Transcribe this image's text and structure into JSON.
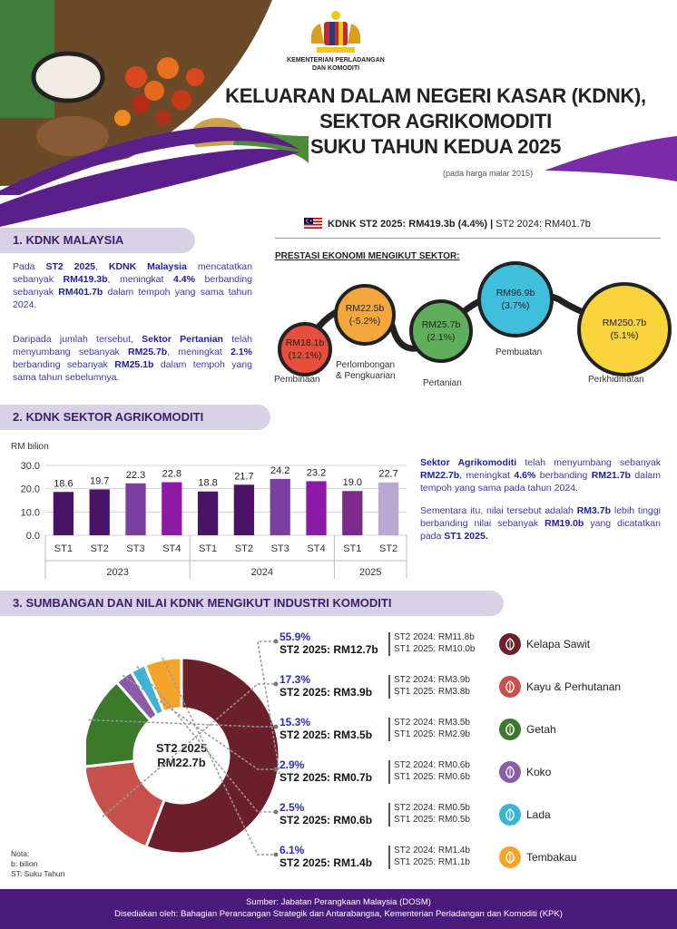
{
  "header": {
    "ministry": [
      "KEMENTERIAN PERLADANGAN",
      "DAN KOMODITI"
    ],
    "title_lines": [
      "KELUARAN DALAM NEGERI KASAR (KDNK),",
      "SEKTOR AGRIKOMODITI",
      "SUKU TAHUN KEDUA 2025"
    ],
    "price_note": "(pada harga malar 2015)"
  },
  "kdnk_summary": {
    "current": "KDNK ST2 2025: RM419.3b (4.4%)",
    "separator": " | ",
    "previous": "ST2 2024: RM401.7b"
  },
  "section1": {
    "heading": "1. KDNK MALAYSIA",
    "para1": [
      {
        "t": "Pada ",
        "b": false
      },
      {
        "t": "ST2 2025",
        "b": true
      },
      {
        "t": ", ",
        "b": false
      },
      {
        "t": "KDNK Malaysia",
        "b": true
      },
      {
        "t": " mencatatkan sebanyak ",
        "b": false
      },
      {
        "t": "RM419.3b",
        "b": true
      },
      {
        "t": ", meningkat ",
        "b": false
      },
      {
        "t": "4.4%",
        "b": true
      },
      {
        "t": " berbanding sebanyak ",
        "b": false
      },
      {
        "t": "RM401.7b",
        "b": true
      },
      {
        "t": " dalam tempoh yang sama tahun 2024.",
        "b": false
      }
    ],
    "para2": [
      {
        "t": "Daripada jumlah tersebut, ",
        "b": false
      },
      {
        "t": "Sektor Pertanian",
        "b": true
      },
      {
        "t": " telah menyumbang sebanyak ",
        "b": false
      },
      {
        "t": "RM25.7b",
        "b": true
      },
      {
        "t": ", meningkat ",
        "b": false
      },
      {
        "t": "2.1%",
        "b": true
      },
      {
        "t": " berbanding sebanyak ",
        "b": false
      },
      {
        "t": "RM25.1b",
        "b": true
      },
      {
        "t": " dalam tempoh yang sama tahun sebelumnya.",
        "b": false
      }
    ]
  },
  "sector_performance": {
    "title": "PRESTASI EKONOMI MENGIKUT SEKTOR:",
    "sectors": [
      {
        "name": "Pembinaan",
        "value": "RM18.1b",
        "growth": "(12.1%)",
        "color": "#e84e3c"
      },
      {
        "name": "Perlombongan\n& Pengkuarian",
        "value": "RM22.5b",
        "growth": "(-5.2%)",
        "color": "#f6a73b"
      },
      {
        "name": "Pertanian",
        "value": "RM25.7b",
        "growth": "(2.1%)",
        "color": "#5fae5b"
      },
      {
        "name": "Pembuatan",
        "value": "RM96.9b",
        "growth": "(3.7%)",
        "color": "#3fbfdc"
      },
      {
        "name": "Perkhidmatan",
        "value": "RM250.7b",
        "growth": "(5.1%)",
        "color": "#f9d43a"
      }
    ]
  },
  "section2": {
    "heading": "2. KDNK SEKTOR AGRIKOMODITI",
    "para1": [
      {
        "t": "Sektor Agrikomoditi",
        "b": true
      },
      {
        "t": " telah menyumbang sebanyak ",
        "b": false
      },
      {
        "t": "RM22.7b",
        "b": true
      },
      {
        "t": ", meningkat ",
        "b": false
      },
      {
        "t": "4.6%",
        "b": true
      },
      {
        "t": " berbanding ",
        "b": false
      },
      {
        "t": "RM21.7b",
        "b": true
      },
      {
        "t": " dalam tempoh yang sama pada tahun 2024.",
        "b": false
      }
    ],
    "para2": [
      {
        "t": "Sementara itu, nilai tersebut adalah ",
        "b": false
      },
      {
        "t": "RM3.7b",
        "b": true
      },
      {
        "t": " lebih tinggi berbanding nilai sebanyak ",
        "b": false
      },
      {
        "t": "RM19.0b",
        "b": true
      },
      {
        "t": " yang dicatatkan pada ",
        "b": false
      },
      {
        "t": "ST1 2025.",
        "b": true
      }
    ]
  },
  "chart_data": [
    {
      "type": "bar",
      "ylabel": "RM bilion",
      "ylim": [
        0,
        30
      ],
      "yticks": [
        "0.0",
        "10.0",
        "20.0",
        "30.0"
      ],
      "grid": true,
      "categories": [
        "ST1",
        "ST2",
        "ST3",
        "ST4",
        "ST1",
        "ST2",
        "ST3",
        "ST4",
        "ST1",
        "ST2"
      ],
      "groups": [
        {
          "label": "2023",
          "count": 4
        },
        {
          "label": "2024",
          "count": 4
        },
        {
          "label": "2025",
          "count": 2
        }
      ],
      "values": [
        18.6,
        19.7,
        22.3,
        22.8,
        18.8,
        21.7,
        24.2,
        23.2,
        19.0,
        22.7
      ],
      "value_labels": [
        "18.6",
        "19.7",
        "22.3",
        "22.8",
        "18.8",
        "21.7",
        "24.2",
        "23.2",
        "19.0",
        "22.7"
      ],
      "colors": [
        "#4a1466",
        "#4a1466",
        "#7b3fa0",
        "#8c1aa6",
        "#4a1466",
        "#4a1466",
        "#7b3fa0",
        "#8c1aa6",
        "#7b2a8c",
        "#b8a8d4"
      ]
    },
    {
      "type": "pie",
      "center_label": [
        "ST2 2025",
        "RM22.7b"
      ],
      "slices": [
        {
          "name": "Kelapa Sawit",
          "share": 55.9,
          "color": "#6b1f2a"
        },
        {
          "name": "Kayu & Perhutanan",
          "share": 17.3,
          "color": "#c8504a"
        },
        {
          "name": "Getah",
          "share": 15.3,
          "color": "#3b7a2a"
        },
        {
          "name": "Koko",
          "share": 2.9,
          "color": "#8a5ca8"
        },
        {
          "name": "Lada",
          "share": 2.5,
          "color": "#3ab4d6"
        },
        {
          "name": "Tembakau",
          "share": 6.1,
          "color": "#f4a42a"
        }
      ]
    }
  ],
  "section3": {
    "heading": "3. SUMBANGAN DAN NILAI KDNK MENGIKUT INDUSTRI KOMODITI",
    "industries": [
      {
        "name": "Kelapa Sawit",
        "share": "55.9%",
        "total": "ST2 2025: RM12.7b",
        "prev_lines": [
          "ST2 2024: RM11.8b",
          "ST1 2025: RM10.0b"
        ],
        "icon": "palm-fruit-icon",
        "color": "#6b1f2a"
      },
      {
        "name": "Kayu & Perhutanan",
        "share": "17.3%",
        "total": "ST2 2025: RM3.9b",
        "prev_lines": [
          "ST2 2024: RM3.9b",
          "ST1 2025: RM3.8b"
        ],
        "icon": "timber-icon",
        "color": "#c8504a"
      },
      {
        "name": "Getah",
        "share": "15.3%",
        "total": "ST2 2025: RM3.5b",
        "prev_lines": [
          "ST2 2024: RM3.5b",
          "ST1 2025: RM2.9b"
        ],
        "icon": "rubber-icon",
        "color": "#3b7a2a"
      },
      {
        "name": "Koko",
        "share": "2.9%",
        "total": "ST2 2025: RM0.7b",
        "prev_lines": [
          "ST2 2024: RM0.6b",
          "ST1 2025: RM0.6b"
        ],
        "icon": "cocoa-icon",
        "color": "#8a5ca8"
      },
      {
        "name": "Lada",
        "share": "2.5%",
        "total": "ST2 2025: RM0.6b",
        "prev_lines": [
          "ST2 2024: RM0.5b",
          "ST1 2025: RM0.5b"
        ],
        "icon": "pepper-icon",
        "color": "#3ab4d6"
      },
      {
        "name": "Tembakau",
        "share": "6.1%",
        "total": "ST2 2025: RM1.4b",
        "prev_lines": [
          "ST2 2024: RM1.4b",
          "ST1 2025: RM1.1b"
        ],
        "icon": "tobacco-leaf-icon",
        "color": "#f4a42a"
      }
    ]
  },
  "notes": [
    "Nota:",
    "b: bilion",
    "ST: Suku Tahun"
  ],
  "footer": {
    "source": "Sumber: Jabatan Perangkaan Malaysia (DOSM)",
    "prepared": "Disediakan oleh: Bahagian Perancangan Strategik dan Antarabangsa, Kementerian Perladangan dan Komoditi (KPK)"
  }
}
